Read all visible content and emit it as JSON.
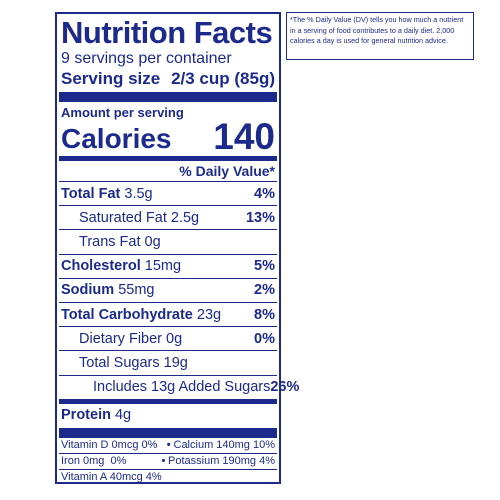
{
  "label": {
    "title": "Nutrition Facts",
    "servings_per_container": "9 servings per container",
    "serving_size_label": "Serving size",
    "serving_size_value": "2/3 cup (85g)",
    "amount_per_serving": "Amount per serving",
    "calories_label": "Calories",
    "calories_value": "140",
    "daily_value_header": "% Daily Value*",
    "nutrients": [
      {
        "name": "Total Fat",
        "amount": "3.5g",
        "dv": "4%"
      },
      {
        "name": "Saturated Fat",
        "amount": "2.5g",
        "dv": "13%"
      },
      {
        "name": "Trans Fat",
        "amount": "0g",
        "dv": ""
      },
      {
        "name": "Cholesterol",
        "amount": "15mg",
        "dv": "5%"
      },
      {
        "name": "Sodium",
        "amount": "55mg",
        "dv": "2%"
      },
      {
        "name": "Total Carbohydrate",
        "amount": "23g",
        "dv": "8%"
      },
      {
        "name": "Dietary Fiber",
        "amount": "0g",
        "dv": "0%"
      },
      {
        "name": "Total Sugars",
        "amount": "19g",
        "dv": ""
      },
      {
        "name": "Includes 13g Added Sugars",
        "amount": "",
        "dv": "26%"
      },
      {
        "name": "Protein",
        "amount": "4g",
        "dv": ""
      }
    ],
    "vitamins": [
      {
        "left": "Vitamin D 0mcg 0%",
        "right": "Calcium 140mg 10%"
      },
      {
        "left": "Iron 0mg  0%",
        "right": "Potassium 190mg 4%"
      },
      {
        "left": "Vitamin A 40mcg 4%",
        "right": ""
      }
    ],
    "separator_glyph": "•"
  },
  "footnote": "*The % Daily Value (DV) tells you how much a nutrient in a serving of food contributes to a daily diet. 2,000 calories a day is used for general nutrition advice."
}
